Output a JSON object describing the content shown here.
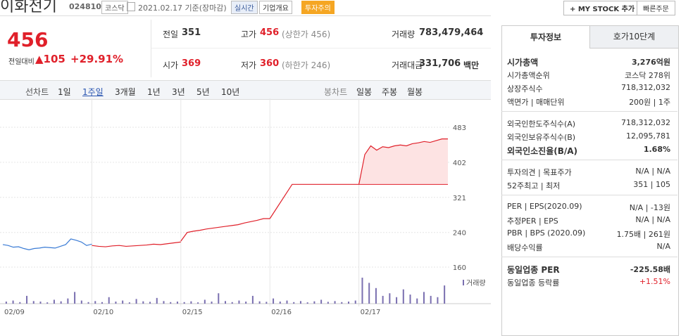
{
  "header": {
    "title": "이화전기",
    "code": "024810",
    "market": "코스닥",
    "date": "2021.02.17 기준(장마감)",
    "buttons": [
      "실시간",
      "기업개요",
      "투자주의"
    ],
    "right_buttons": [
      "+ MY STOCK 추가",
      "빠른주문"
    ]
  },
  "quote": {
    "price": "456",
    "change_label": "전일대비",
    "change": "▲105",
    "change_rate": "+29.91%",
    "cells": [
      {
        "label": "전일",
        "value": 351,
        "note": ""
      },
      {
        "label": "고가",
        "value": "456",
        "note": "(상한가 456)"
      },
      {
        "label": "거래량",
        "value": "783,479,464",
        "note": ""
      },
      {
        "label": "시가",
        "value": "369",
        "note": ""
      },
      {
        "label": "저가",
        "value": "360",
        "note": "(하한가 246)"
      },
      {
        "label": "거래대금",
        "value": "331,706",
        "note": "백만"
      }
    ]
  },
  "tabs": {
    "line_label": "선차트",
    "line": [
      "1일",
      "1주일",
      "3개월",
      "1년",
      "3년",
      "5년",
      "10년"
    ],
    "line_active": 1,
    "candle_label": "봉차트",
    "candle": [
      "일봉",
      "주봉",
      "월봉"
    ]
  },
  "chart_data": {
    "type": "line",
    "categories": [
      "02/09",
      "02/10",
      "02/15",
      "02/16",
      "02/17"
    ],
    "segments": [
      {
        "color": "#3a7bd5",
        "values": [
          212,
          210,
          206,
          207,
          203,
          200,
          203,
          204,
          206,
          205,
          204,
          208,
          212,
          225,
          222,
          218,
          210,
          213
        ]
      },
      {
        "color": "#e0202a",
        "values": [
          210,
          208,
          207,
          209,
          210,
          208,
          209,
          210,
          211,
          213,
          212,
          214,
          216,
          218
        ]
      },
      {
        "color": "#e0202a",
        "values": [
          220,
          240,
          243,
          245,
          248,
          250,
          252,
          254,
          256,
          258,
          262,
          265,
          268,
          272,
          272
        ]
      },
      {
        "color": "#e0202a",
        "values": [
          272,
          351,
          351,
          351,
          351
        ]
      },
      {
        "color": "#e0202a",
        "fill": "#fde3e3",
        "values": [
          351,
          420,
          440,
          430,
          438,
          436,
          440,
          442,
          440,
          445,
          447,
          450,
          448,
          452,
          456,
          456
        ]
      }
    ],
    "ylim": [
      160,
      483
    ],
    "yticks": [
      483,
      402,
      321,
      240,
      160
    ],
    "volume": {
      "label": "거래량",
      "color": "#7a6fb0",
      "ylim": [
        0,
        100
      ],
      "values": [
        [
          8,
          12,
          6,
          30,
          10,
          8,
          5,
          15,
          9,
          20,
          45,
          12,
          6
        ],
        [
          10,
          6,
          25,
          8,
          12,
          5,
          18,
          9,
          7,
          22,
          10,
          6,
          8
        ],
        [
          6,
          9,
          5,
          15,
          8,
          40,
          10,
          6,
          12,
          8,
          30,
          9,
          7
        ],
        [
          20,
          8,
          12,
          6,
          10,
          5,
          9,
          15,
          7,
          10,
          6,
          8,
          12
        ],
        [
          100,
          80,
          60,
          30,
          40,
          25,
          55,
          35,
          20,
          45,
          30,
          25,
          70
        ]
      ]
    }
  },
  "panel": {
    "tabs": [
      "투자정보",
      "호가10단계"
    ],
    "groups": [
      [
        {
          "label": "시가총액",
          "value": "3,276억원",
          "bold": true
        },
        {
          "label": "시가총액순위",
          "value": "코스닥 278위"
        },
        {
          "label": "상장주식수",
          "value": "718,312,032"
        },
        {
          "label": "액면가 | 매매단위",
          "value": "200원 | 1주"
        }
      ],
      [
        {
          "label": "외국인한도주식수(A)",
          "value": "718,312,032"
        },
        {
          "label": "외국인보유주식수(B)",
          "value": "12,095,781"
        },
        {
          "label": "외국인소진율(B/A)",
          "value": "1.68%",
          "bold": true
        }
      ],
      [
        {
          "label": "투자의견 | 목표주가",
          "value": "N/A | N/A"
        },
        {
          "label": "52주최고 | 최저",
          "value": "351 | 105"
        }
      ],
      [
        {
          "label": "PER | EPS(2020.09)",
          "value": "N/A | -13원"
        },
        {
          "label": "추정PER | EPS",
          "value": "N/A | N/A"
        },
        {
          "label": "PBR | BPS (2020.09)",
          "value": "1.75배 | 261원"
        },
        {
          "label": "배당수익률",
          "value": "N/A"
        }
      ],
      [
        {
          "label": "동일업종 PER",
          "value": "-225.58배",
          "bold": true
        },
        {
          "label": "동일업종 등락률",
          "value": "+1.51%",
          "red": true
        }
      ]
    ]
  }
}
